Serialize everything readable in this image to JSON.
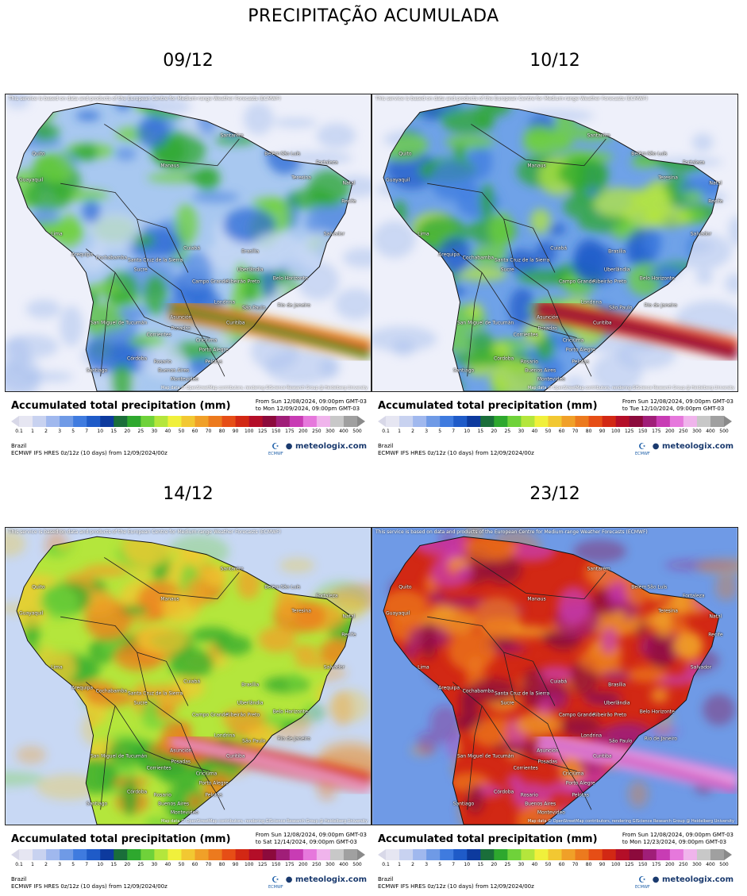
{
  "title": "PRECIPITAÇÃO ACUMULADA",
  "disclaimer": "This service is based on data and products of the European Centre for Medium-range Weather Forecasts (ECMWF)",
  "attribution": "Map data © OpenStreetMap contributors, rendering GIScience Research Group @ Heidelberg University",
  "legend": {
    "title": "Accumulated total precipitation (mm)",
    "ticks": [
      "0.1",
      "1",
      "2",
      "3",
      "5",
      "7",
      "10",
      "15",
      "20",
      "25",
      "30",
      "40",
      "50",
      "60",
      "70",
      "80",
      "90",
      "100",
      "125",
      "150",
      "175",
      "200",
      "250",
      "300",
      "400",
      "500"
    ],
    "colors": [
      "#e6e6f2",
      "#c8d2f0",
      "#a0b8ee",
      "#6f9ae6",
      "#3f7bdf",
      "#1f5bc8",
      "#0d3a9e",
      "#1a6e3a",
      "#2ea82e",
      "#6fd23a",
      "#b4e63c",
      "#f0f03c",
      "#f2c832",
      "#f0a028",
      "#ec7a1e",
      "#e64e16",
      "#d22814",
      "#b40e28",
      "#8c0a3c",
      "#a01e78",
      "#c83cb4",
      "#e678dc",
      "#f0b4ec",
      "#c8c8c8",
      "#a0a0a0"
    ],
    "region": "Brazil",
    "model": "ECMWF IFS HRES 0z/12z (10 days) from 12/09/2024/00z",
    "brand": "meteologix.com",
    "ecmwf_label": "ECMWF"
  },
  "cities": [
    {
      "name": "Quito"
    },
    {
      "name": "Guayaquil"
    },
    {
      "name": "Manaus"
    },
    {
      "name": "Santarém"
    },
    {
      "name": "Belém"
    },
    {
      "name": "São Luís"
    },
    {
      "name": "Fortaleza"
    },
    {
      "name": "Teresina"
    },
    {
      "name": "Natal"
    },
    {
      "name": "Recife"
    },
    {
      "name": "Salvador"
    },
    {
      "name": "Lima"
    },
    {
      "name": "Arequipa"
    },
    {
      "name": "Cochabamba"
    },
    {
      "name": "Santa Cruz de la Sierra"
    },
    {
      "name": "Sucre"
    },
    {
      "name": "Cuiabá"
    },
    {
      "name": "Brasília"
    },
    {
      "name": "Uberlândia"
    },
    {
      "name": "Ribeirão Preto"
    },
    {
      "name": "Belo Horizonte"
    },
    {
      "name": "Campo Grande"
    },
    {
      "name": "Londrina"
    },
    {
      "name": "São Paulo"
    },
    {
      "name": "Rio de Janeiro"
    },
    {
      "name": "Asunción"
    },
    {
      "name": "Curitiba"
    },
    {
      "name": "Posadas"
    },
    {
      "name": "San Miguel de Tucumán"
    },
    {
      "name": "Corrientes"
    },
    {
      "name": "Criciúma"
    },
    {
      "name": "Porto Alegre"
    },
    {
      "name": "Córdoba"
    },
    {
      "name": "Rosario"
    },
    {
      "name": "Buenos Aires"
    },
    {
      "name": "Montevideo"
    },
    {
      "name": "Santiago"
    },
    {
      "name": "Pelotas"
    }
  ],
  "panels": [
    {
      "date": "09/12",
      "range_from": "From Sun 12/08/2024, 09:00pm GMT-03",
      "range_to": "to Mon 12/09/2024, 09:00pm GMT-03",
      "intensity": 1
    },
    {
      "date": "10/12",
      "range_from": "From Sun 12/08/2024, 09:00pm GMT-03",
      "range_to": "to Tue 12/10/2024, 09:00pm GMT-03",
      "intensity": 2
    },
    {
      "date": "14/12",
      "range_from": "From Sun 12/08/2024, 09:00pm GMT-03",
      "range_to": "to Sat 12/14/2024, 09:00pm GMT-03",
      "intensity": 3
    },
    {
      "date": "23/12",
      "range_from": "From Sun 12/08/2024, 09:00pm GMT-03",
      "range_to": "to Mon 12/23/2024, 09:00pm GMT-03",
      "intensity": 4
    }
  ]
}
